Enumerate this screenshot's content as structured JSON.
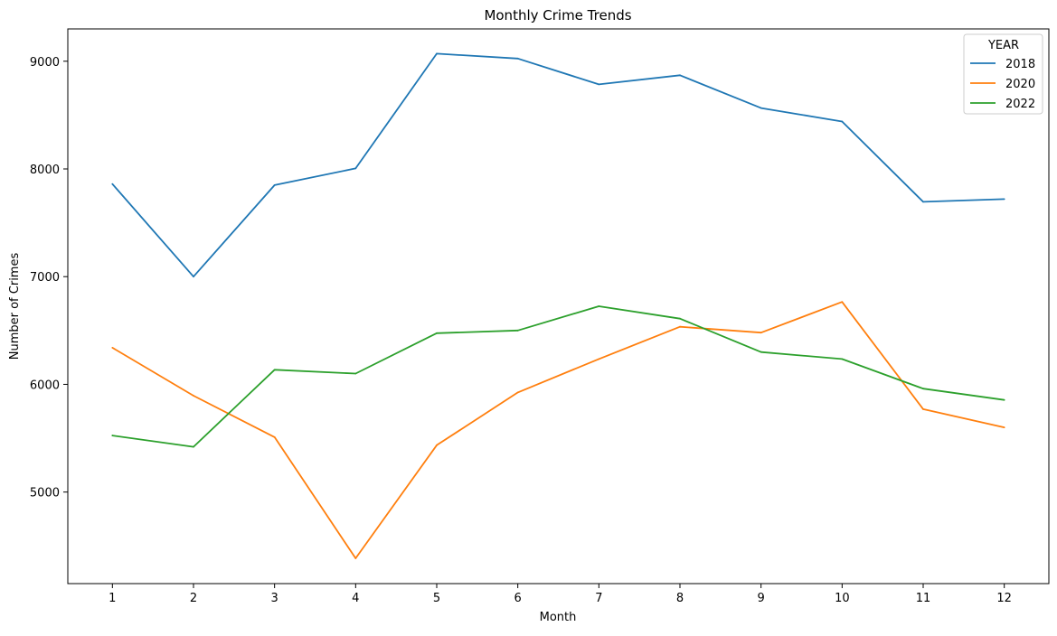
{
  "chart_data": {
    "type": "line",
    "title": "Monthly Crime Trends",
    "xlabel": "Month",
    "ylabel": "Number of Crimes",
    "x": [
      1,
      2,
      3,
      4,
      5,
      6,
      7,
      8,
      9,
      10,
      11,
      12
    ],
    "x_tick_labels": [
      "1",
      "2",
      "3",
      "4",
      "5",
      "6",
      "7",
      "8",
      "9",
      "10",
      "11",
      "12"
    ],
    "xlim": [
      0.45,
      12.55
    ],
    "ylim": [
      4150,
      9300
    ],
    "y_ticks": [
      5000,
      6000,
      7000,
      8000,
      9000
    ],
    "y_tick_labels": [
      "5000",
      "6000",
      "7000",
      "8000",
      "9000"
    ],
    "grid": false,
    "legend": {
      "title": "YEAR",
      "placement": "top-right"
    },
    "series": [
      {
        "name": "2018",
        "color": "#1f77b4",
        "values": [
          7860,
          7000,
          7850,
          8005,
          9070,
          9025,
          8785,
          8870,
          8565,
          8440,
          7695,
          7720
        ]
      },
      {
        "name": "2020",
        "color": "#ff7f0e",
        "values": [
          6340,
          5895,
          5510,
          4385,
          5435,
          5925,
          6235,
          6535,
          6480,
          6765,
          5770,
          5600
        ]
      },
      {
        "name": "2022",
        "color": "#2ca02c",
        "values": [
          5525,
          5420,
          6135,
          6100,
          6475,
          6500,
          6725,
          6610,
          6300,
          6235,
          5960,
          5855
        ]
      }
    ]
  }
}
